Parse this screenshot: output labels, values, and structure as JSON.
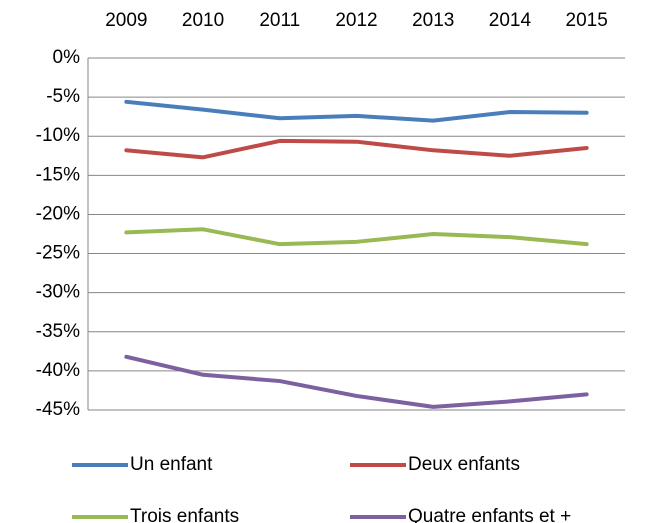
{
  "chart_data": {
    "type": "line",
    "categories": [
      "2009",
      "2010",
      "2011",
      "2012",
      "2013",
      "2014",
      "2015"
    ],
    "series": [
      {
        "name": "Un enfant",
        "color": "#4a7ebb",
        "values": [
          -5.6,
          -6.6,
          -7.7,
          -7.4,
          -8.0,
          -6.9,
          -7.0
        ]
      },
      {
        "name": "Deux enfants",
        "color": "#be4b48",
        "values": [
          -11.8,
          -12.7,
          -10.6,
          -10.7,
          -11.8,
          -12.5,
          -11.5
        ]
      },
      {
        "name": "Trois enfants",
        "color": "#98b954",
        "values": [
          -22.3,
          -21.9,
          -23.8,
          -23.5,
          -22.5,
          -22.9,
          -23.8
        ]
      },
      {
        "name": "Quatre enfants et +",
        "color": "#7d60a0",
        "values": [
          -38.2,
          -40.5,
          -41.3,
          -43.2,
          -44.6,
          -43.9,
          -43.0
        ]
      }
    ],
    "ylim": [
      -45,
      0
    ],
    "yticks": [
      {
        "value": 0,
        "label": "0%"
      },
      {
        "value": -5,
        "label": "-5%"
      },
      {
        "value": -10,
        "label": "-10%"
      },
      {
        "value": -15,
        "label": "-15%"
      },
      {
        "value": -20,
        "label": "-20%"
      },
      {
        "value": -25,
        "label": "-25%"
      },
      {
        "value": -30,
        "label": "-30%"
      },
      {
        "value": -35,
        "label": "-35%"
      },
      {
        "value": -40,
        "label": "-40%"
      },
      {
        "value": -45,
        "label": "-45%"
      }
    ],
    "grid": true,
    "legend": "bottom"
  }
}
